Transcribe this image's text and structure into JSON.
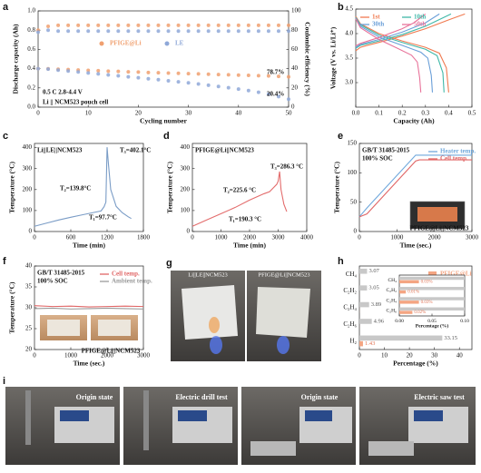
{
  "chart_data": [
    {
      "panel": "a",
      "type": "scatter",
      "xlabel": "Cycling number",
      "ylabel": "Discharge capacity (Ah)",
      "y2label": "Coulombic efficiency (%)",
      "x": [
        0,
        2,
        4,
        6,
        8,
        10,
        12,
        14,
        16,
        18,
        20,
        22,
        24,
        26,
        28,
        30,
        32,
        34,
        36,
        38,
        40,
        42,
        44,
        46,
        48,
        50
      ],
      "series": [
        {
          "name": "PFIGE@Li",
          "color": "#f0a070",
          "values": [
            0.4,
            0.398,
            0.394,
            0.39,
            0.386,
            0.382,
            0.378,
            0.374,
            0.371,
            0.367,
            0.364,
            0.36,
            0.357,
            0.354,
            0.351,
            0.348,
            0.345,
            0.342,
            0.339,
            0.336,
            0.333,
            0.33,
            0.327,
            0.324,
            0.32,
            0.315
          ]
        },
        {
          "name": "LE",
          "color": "#8fa8d8",
          "values": [
            0.4,
            0.395,
            0.385,
            0.375,
            0.365,
            0.355,
            0.345,
            0.335,
            0.325,
            0.315,
            0.305,
            0.295,
            0.285,
            0.274,
            0.263,
            0.252,
            0.24,
            0.228,
            0.215,
            0.202,
            0.188,
            0.172,
            0.155,
            0.135,
            0.11,
            0.082
          ]
        },
        {
          "color": "#f0a070",
          "axis": "y2",
          "values": [
            80,
            84,
            85,
            85,
            85,
            85,
            85,
            85,
            85,
            85,
            85,
            85,
            85,
            85,
            85,
            85,
            85,
            85,
            85,
            85,
            85,
            85,
            85,
            85,
            85,
            85
          ]
        },
        {
          "color": "#8fa8d8",
          "axis": "y2",
          "values": [
            78,
            80,
            79,
            79,
            79,
            79,
            79,
            79,
            79,
            79,
            79,
            79,
            79,
            79,
            79,
            79,
            79,
            79,
            79,
            79,
            79,
            79,
            79,
            79,
            79,
            79
          ]
        }
      ],
      "xlim": [
        0,
        50
      ],
      "xticks": [
        0,
        10,
        20,
        30,
        40,
        50
      ],
      "ylim": [
        0,
        1
      ],
      "yticks": [
        {
          "value": 0,
          "label": "0.0"
        },
        {
          "value": 0.2,
          "label": "0.2"
        },
        {
          "value": 0.4,
          "label": "0.4"
        },
        {
          "value": 0.6,
          "label": "0.6"
        },
        {
          "value": 0.8,
          "label": "0.8"
        },
        {
          "value": 1,
          "label": "1.0"
        }
      ],
      "y2lim": [
        0,
        100
      ],
      "y2ticks": [
        0,
        20,
        40,
        60,
        80,
        100
      ],
      "legend": "center",
      "annotations": [
        "78.7%",
        "20.4%",
        "0.5 C   2.8-4.4 V",
        "Li || NCM523 pouch cell"
      ]
    },
    {
      "panel": "b",
      "type": "line",
      "xlabel": "Capacity (Ah)",
      "ylabel": "Voltage (V vs. Li/Li⁺)",
      "series": [
        {
          "name": "1st",
          "color": "#f07a50",
          "x": [
            0,
            0.02,
            0.05,
            0.1,
            0.2,
            0.3,
            0.4,
            0.47,
            null,
            0,
            0.02,
            0.1,
            0.2,
            0.3,
            0.36,
            0.39,
            0.4
          ],
          "values": [
            3.65,
            3.72,
            3.76,
            3.82,
            3.95,
            4.1,
            4.28,
            4.4,
            null,
            4.35,
            4.2,
            4.0,
            3.85,
            3.72,
            3.6,
            3.3,
            2.8
          ]
        },
        {
          "name": "10th",
          "color": "#3fb8a8",
          "x": [
            0,
            0.02,
            0.1,
            0.2,
            0.3,
            0.41,
            null,
            0,
            0.02,
            0.1,
            0.2,
            0.3,
            0.35,
            0.375,
            0.38
          ],
          "values": [
            3.7,
            3.76,
            3.85,
            3.98,
            4.15,
            4.4,
            null,
            4.33,
            4.18,
            3.97,
            3.82,
            3.68,
            3.55,
            3.2,
            2.8
          ]
        },
        {
          "name": "30th",
          "color": "#6a9fd8",
          "x": [
            0,
            0.02,
            0.1,
            0.2,
            0.3,
            0.36,
            null,
            0,
            0.02,
            0.1,
            0.2,
            0.28,
            0.31,
            0.325,
            0.33
          ],
          "values": [
            3.72,
            3.78,
            3.88,
            4.03,
            4.22,
            4.4,
            null,
            4.32,
            4.15,
            3.93,
            3.76,
            3.62,
            3.5,
            3.15,
            2.8
          ]
        },
        {
          "name": "50th",
          "color": "#e8739a",
          "x": [
            0,
            0.02,
            0.1,
            0.2,
            0.25,
            0.3,
            null,
            0,
            0.02,
            0.1,
            0.18,
            0.24,
            0.265,
            0.275,
            0.28
          ],
          "values": [
            3.75,
            3.8,
            3.92,
            4.1,
            4.22,
            4.4,
            null,
            4.3,
            4.12,
            3.88,
            3.7,
            3.56,
            3.42,
            3.1,
            2.8
          ]
        }
      ],
      "xlim": [
        0,
        0.5
      ],
      "xticks": [
        {
          "value": 0,
          "label": "0.0"
        },
        {
          "value": 0.1,
          "label": "0.1"
        },
        {
          "value": 0.2,
          "label": "0.2"
        },
        {
          "value": 0.3,
          "label": "0.3"
        },
        {
          "value": 0.4,
          "label": "0.4"
        },
        {
          "value": 0.5,
          "label": "0.5"
        }
      ],
      "ylim": [
        2.5,
        4.5
      ],
      "yticks": [
        {
          "value": 3,
          "label": "3.0"
        },
        3.5,
        {
          "value": 4,
          "label": "4.0"
        },
        4.5
      ],
      "legend": "upper left"
    },
    {
      "panel": "c",
      "type": "line",
      "title": "Li||LE||NCM523",
      "xlabel": "Time (min)",
      "ylabel": "Temperature (°C)",
      "x": [
        0,
        200,
        400,
        600,
        800,
        1000,
        1100,
        1150,
        1180,
        1200,
        1220,
        1260,
        1350,
        1450,
        1550,
        1600
      ],
      "series": [
        {
          "color": "#7a9cc6",
          "values": [
            25,
            40,
            55,
            68,
            80,
            92,
            98,
            118,
            140,
            402,
            330,
            200,
            120,
            90,
            70,
            62
          ]
        }
      ],
      "xlim": [
        0,
        1800
      ],
      "xticks": [
        0,
        600,
        1200,
        1800
      ],
      "ylim": [
        0,
        420
      ],
      "yticks": [
        0,
        100,
        200,
        300,
        400
      ],
      "annotations": [
        "T₁=97.7°C",
        "T₂=139.8°C",
        "T₃=402.1°C"
      ]
    },
    {
      "panel": "d",
      "type": "line",
      "title": "PFIGE@Li||NCM523",
      "xlabel": "Time (min)",
      "ylabel": "Temperature (°C)",
      "x": [
        0,
        500,
        1000,
        1500,
        2000,
        2500,
        2700,
        2950,
        3000,
        3050,
        3100,
        3200,
        3300
      ],
      "series": [
        {
          "color": "#e36c6c",
          "values": [
            25,
            55,
            85,
            115,
            150,
            180,
            190,
            225,
            240,
            286,
            200,
            130,
            95
          ]
        }
      ],
      "xlim": [
        0,
        4000
      ],
      "xticks": [
        0,
        1000,
        2000,
        3000,
        4000
      ],
      "ylim": [
        0,
        420
      ],
      "yticks": [
        0,
        100,
        200,
        300,
        400
      ],
      "annotations": [
        "T₁=190.3 °C",
        "T₂=225.6 °C",
        "T₃=286.3 °C"
      ]
    },
    {
      "panel": "e",
      "type": "line",
      "title": "GB/T 31485-2015",
      "subtitle": "100% SOC",
      "xlabel": "Time (sec.)",
      "ylabel": "Temperature (°C)",
      "x": [
        0,
        200,
        1500,
        1600,
        3000
      ],
      "series": [
        {
          "name": "Heater temp.",
          "color": "#6fa8dc",
          "values": [
            25,
            40,
            130,
            130,
            130
          ]
        },
        {
          "name": "Cell temp.",
          "color": "#e06666",
          "values": [
            25,
            30,
            120,
            122,
            122
          ]
        }
      ],
      "xlim": [
        0,
        3000
      ],
      "xticks": [
        0,
        1000,
        2000,
        3000
      ],
      "ylim": [
        0,
        150
      ],
      "yticks": [
        0,
        50,
        100,
        150
      ],
      "legend": "upper right",
      "annotations": [
        "PFIGE@Li||NCM523"
      ]
    },
    {
      "panel": "f",
      "type": "line",
      "title": "GB/T 31485-2015",
      "subtitle": "100% SOC",
      "xlabel": "Time (sec.)",
      "ylabel": "Temperature (°C)",
      "x": [
        0,
        500,
        1000,
        1500,
        2000,
        2500,
        3000
      ],
      "series": [
        {
          "name": "Cell temp.",
          "color": "#e06666",
          "values": [
            30.5,
            30.3,
            30.4,
            30.2,
            30.3,
            30.4,
            30.3
          ]
        },
        {
          "name": "Ambient temp.",
          "color": "#9a9a9a",
          "values": [
            29.8,
            29.9,
            29.7,
            29.8,
            29.9,
            29.8,
            29.7
          ]
        }
      ],
      "xlim": [
        0,
        3000
      ],
      "xticks": [
        0,
        1000,
        2000,
        3000
      ],
      "ylim": [
        20,
        40
      ],
      "yticks": [
        20,
        25,
        30,
        35,
        40
      ],
      "legend": "upper right",
      "annotations": [
        "PFIGE@Li||NCM523"
      ]
    },
    {
      "panel": "h",
      "type": "bar",
      "orientation": "horizontal",
      "xlabel": "Percentage (%)",
      "categories": [
        "CH₄",
        "C₂H₂",
        "C₂H₄",
        "C₂H₆",
        "H₂"
      ],
      "series": [
        {
          "name": "PFIGE@Li",
          "color": "#f4a582",
          "values": [
            0.03,
            0.01,
            0.03,
            0.02,
            1.43
          ],
          "value_labels": [
            null,
            null,
            null,
            null,
            "1.43"
          ]
        },
        {
          "name": "LE",
          "color": "#c8c8c8",
          "values": [
            3.07,
            3.05,
            3.89,
            4.96,
            33.15
          ],
          "value_labels": [
            "3.07",
            "3.05",
            "3.89",
            "4.96",
            "33.15"
          ]
        }
      ],
      "xlim": [
        0,
        45
      ],
      "xticks": [
        0,
        10,
        20,
        30,
        40
      ],
      "legend": "upper right"
    },
    {
      "type": "bar",
      "orientation": "horizontal",
      "xlabel": "Percentage (%)",
      "categories": [
        "CH₄",
        "C₂H₂",
        "C₂H₄",
        "C₂H₆"
      ],
      "series": [
        {
          "color": "#f4a582",
          "values": [
            0.03,
            0.01,
            0.03,
            0.02
          ],
          "value_labels": [
            "0.03%",
            "0.01%",
            "0.03%",
            "0.02%"
          ]
        },
        {
          "color": "#c8c8c8",
          "values": [
            3.07,
            3.05,
            3.89,
            4.96
          ]
        }
      ],
      "xlim": [
        0,
        0.1
      ],
      "xticks": [
        {
          "value": 0,
          "label": "0.00"
        },
        {
          "value": 0.05,
          "label": "0.05"
        },
        {
          "value": 0.1,
          "label": "0.10"
        }
      ]
    }
  ],
  "photos": [
    {
      "panel": "g",
      "labels": [
        "Li||LE||NCM523",
        "PFIGE@Li||NCM523"
      ]
    },
    {
      "panel": "i",
      "labels": [
        "Origin state",
        "Electric drill test",
        "Origin state",
        "Electric saw test"
      ]
    }
  ]
}
